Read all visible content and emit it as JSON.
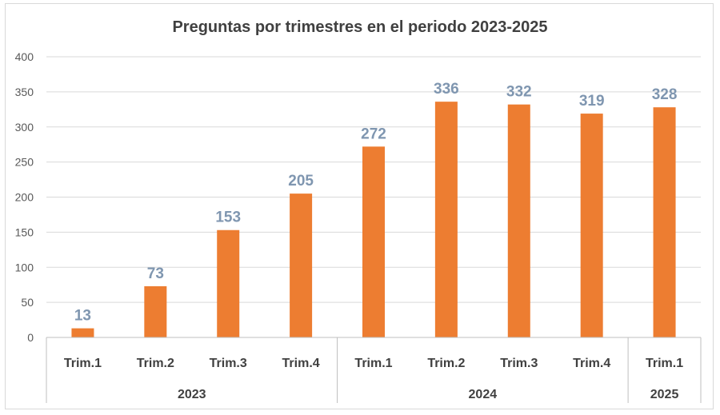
{
  "chart_data": {
    "type": "bar",
    "title": "Preguntas por trimestres en el periodo 2023-2025",
    "categories": [
      "Trim.1",
      "Trim.2",
      "Trim.3",
      "Trim.4",
      "Trim.1",
      "Trim.2",
      "Trim.3",
      "Trim.4",
      "Trim.1"
    ],
    "values": [
      13,
      73,
      153,
      205,
      272,
      336,
      332,
      319,
      328
    ],
    "groups": [
      {
        "label": "2023",
        "count": 4
      },
      {
        "label": "2024",
        "count": 4
      },
      {
        "label": "2025",
        "count": 1
      }
    ],
    "ylim": [
      0,
      400
    ],
    "yticks": [
      0,
      50,
      100,
      150,
      200,
      250,
      300,
      350,
      400
    ],
    "grid": true,
    "legend": "none",
    "bar_color": "#ed7d31",
    "label_color": "#7f96b0"
  }
}
